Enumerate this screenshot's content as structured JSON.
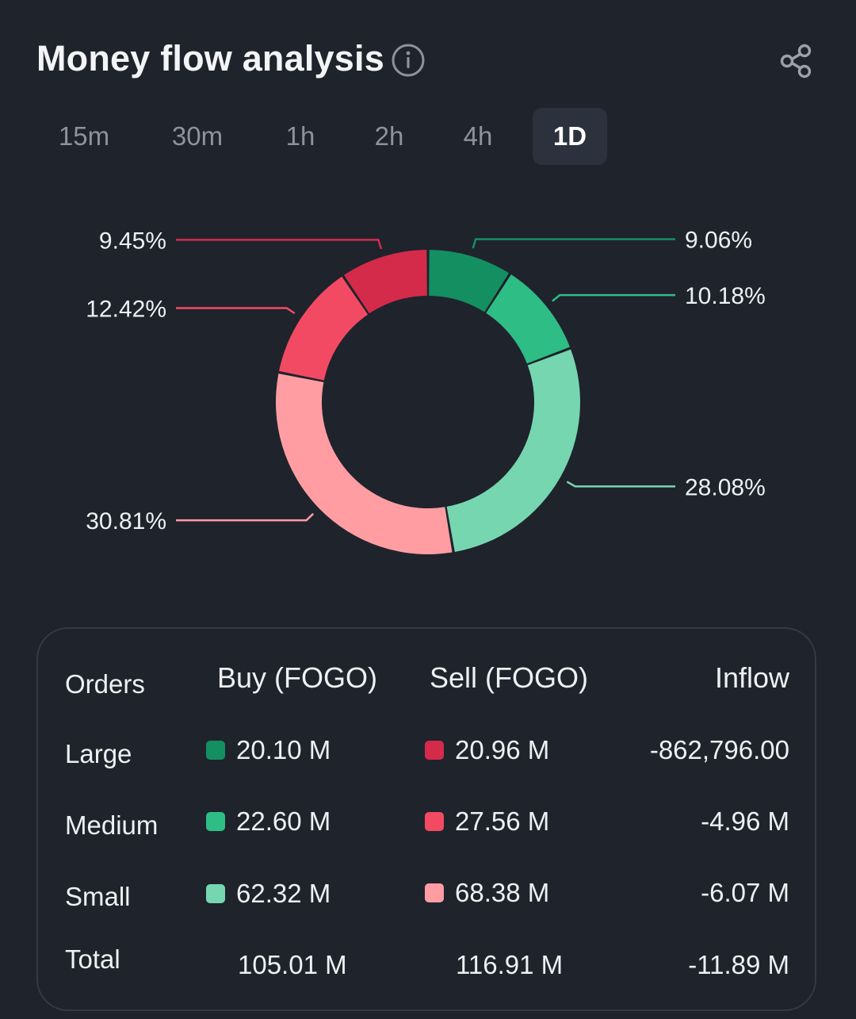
{
  "header": {
    "title": "Money flow analysis"
  },
  "tabs": [
    {
      "label": "15m",
      "active": false
    },
    {
      "label": "30m",
      "active": false
    },
    {
      "label": "1h",
      "active": false
    },
    {
      "label": "2h",
      "active": false
    },
    {
      "label": "4h",
      "active": false
    },
    {
      "label": "1D",
      "active": true
    }
  ],
  "colors": {
    "buy_large": "#138f62",
    "buy_medium": "#2ebd85",
    "buy_small": "#76d6b0",
    "sell_small": "#ff9da3",
    "sell_medium": "#f34a63",
    "sell_large": "#d42b4b",
    "background": "#1f232c"
  },
  "chart_data": {
    "type": "pie",
    "style": "donut",
    "slices": [
      {
        "name": "Large Buy",
        "value": 9.06,
        "label": "9.06%",
        "color_key": "buy_large"
      },
      {
        "name": "Medium Buy",
        "value": 10.18,
        "label": "10.18%",
        "color_key": "buy_medium"
      },
      {
        "name": "Small Buy",
        "value": 28.08,
        "label": "28.08%",
        "color_key": "buy_small"
      },
      {
        "name": "Small Sell",
        "value": 30.81,
        "label": "30.81%",
        "color_key": "sell_small"
      },
      {
        "name": "Medium Sell",
        "value": 12.42,
        "label": "12.42%",
        "color_key": "sell_medium"
      },
      {
        "name": "Large Sell",
        "value": 9.45,
        "label": "9.45%",
        "color_key": "sell_large"
      }
    ]
  },
  "table": {
    "headers": {
      "orders": "Orders",
      "buy": "Buy (FOGO)",
      "sell": "Sell (FOGO)",
      "inflow": "Inflow"
    },
    "rows": [
      {
        "label": "Large",
        "buy": "20.10 M",
        "sell": "20.96 M",
        "inflow": "-862,796.00",
        "buy_color": "#138f62",
        "sell_color": "#d42b4b"
      },
      {
        "label": "Medium",
        "buy": "22.60 M",
        "sell": "27.56 M",
        "inflow": "-4.96 M",
        "buy_color": "#2ebd85",
        "sell_color": "#f34a63"
      },
      {
        "label": "Small",
        "buy": "62.32 M",
        "sell": "68.38 M",
        "inflow": "-6.07 M",
        "buy_color": "#76d6b0",
        "sell_color": "#ff9da3"
      }
    ],
    "total": {
      "label": "Total",
      "buy": "105.01 M",
      "sell": "116.91 M",
      "inflow": "-11.89 M"
    }
  }
}
